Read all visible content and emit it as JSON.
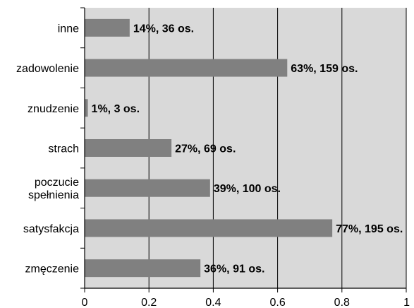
{
  "chart_data": {
    "type": "bar",
    "orientation": "horizontal",
    "categories": [
      "inne",
      "zadowolenie",
      "znudzenie",
      "strach",
      "poczucie spełnienia",
      "satysfakcja",
      "zmęczenie"
    ],
    "category_lines": [
      [
        "inne"
      ],
      [
        "zadowolenie"
      ],
      [
        "znudzenie"
      ],
      [
        "strach"
      ],
      [
        "poczucie",
        "spełnienia"
      ],
      [
        "satysfakcja"
      ],
      [
        "zmęczenie"
      ]
    ],
    "values": [
      0.14,
      0.63,
      0.01,
      0.27,
      0.39,
      0.77,
      0.36
    ],
    "data_labels": [
      "14%, 36 os.",
      "63%, 159 os.",
      "1%, 3 os.",
      "27%, 69 os.",
      "39%, 100 os.",
      "77%, 195 os.",
      "36%, 91 os."
    ],
    "xlim": [
      0,
      1
    ],
    "xticks": [
      0,
      0.2,
      0.4,
      0.6,
      0.8,
      1
    ],
    "xtick_labels": [
      "0",
      "0.2",
      "0.4",
      "0.6",
      "0.8",
      "1"
    ],
    "grid": "vertical",
    "colors": {
      "plot_background": "#d9d9d9",
      "bar": "#808080",
      "gridline": "#000000"
    }
  }
}
